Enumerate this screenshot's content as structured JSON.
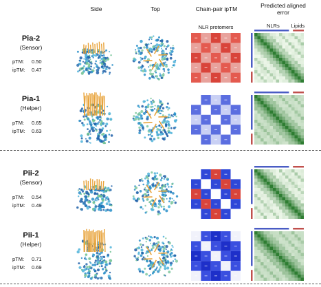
{
  "columns": {
    "side": "Side",
    "top": "Top",
    "iptm": "Chain-pair ipTM",
    "pae_line1": "Predicted aligned",
    "pae_line2": "error"
  },
  "iptm_subheader": "NLR protomers",
  "pae_subheaders": {
    "nlrs": "NLRs",
    "lipids": "Lipids"
  },
  "colors": {
    "red": "#d9443a",
    "blue": "#2f48d8",
    "pae_dark": "#2e7d32",
    "pae_light": "#eef7ea",
    "pae_bar_blue": "#4a5cc4",
    "pae_bar_red": "#c0504d",
    "structure_blue": "#2a6fb0",
    "structure_orange": "#e8a33a"
  },
  "panels": [
    {
      "name": "Pia-2",
      "role": "(Sensor)",
      "ptm_label": "pTM:",
      "ptm": "0.50",
      "iptm_label": "ipTM:",
      "iptm": "0.47",
      "matrix_style": "red",
      "trim_blue": false
    },
    {
      "name": "Pia-1",
      "role": "(Helper)",
      "ptm_label": "pTM:",
      "ptm": "0.65",
      "iptm_label": "ipTM:",
      "iptm": "0.63",
      "matrix_style": "light",
      "trim_blue": true
    },
    {
      "name": "Pii-2",
      "role": "(Sensor)",
      "ptm_label": "pTM:",
      "ptm": "0.54",
      "iptm_label": "ipTM:",
      "iptm": "0.49",
      "matrix_style": "mixed",
      "trim_blue": false
    },
    {
      "name": "Pii-1",
      "role": "(Helper)",
      "ptm_label": "pTM:",
      "ptm": "0.71",
      "iptm_label": "ipTM:",
      "iptm": "0.69",
      "matrix_style": "blue",
      "trim_blue": true
    }
  ]
}
